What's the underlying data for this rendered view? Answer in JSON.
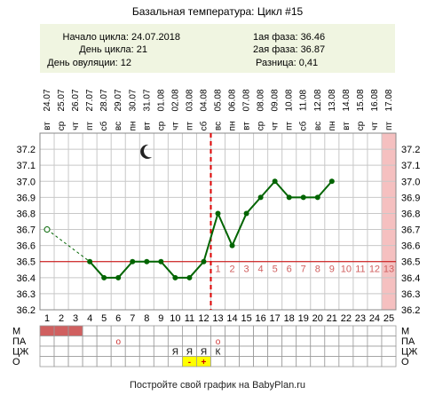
{
  "chart_data": {
    "type": "line",
    "title": "Базальная температура: Цикл #15",
    "info_left": [
      "Начало цикла: 24.07.2018",
      "День цикла: 21",
      "День овуляции: 12"
    ],
    "info_right": [
      "1ая фаза: 36.46",
      "2ая фаза: 36.87",
      "Разница: 0,41"
    ],
    "days": [
      1,
      2,
      3,
      4,
      5,
      6,
      7,
      8,
      9,
      10,
      11,
      12,
      13,
      14,
      15,
      16,
      17,
      18,
      19,
      20,
      21,
      22,
      23,
      24,
      25
    ],
    "weekdays": [
      "вт",
      "ср",
      "чт",
      "пт",
      "сб",
      "вс",
      "пн",
      "вт",
      "ср",
      "чт",
      "пт",
      "сб",
      "вс",
      "пн",
      "вт",
      "ср",
      "чт",
      "пт",
      "сб",
      "вс",
      "пн",
      "вт",
      "ср",
      "чт",
      "пт"
    ],
    "dates": [
      "24.07",
      "25.07",
      "26.07",
      "27.07",
      "28.07",
      "29.07",
      "30.07",
      "31.07",
      "01.08",
      "02.08",
      "03.08",
      "04.08",
      "05.08",
      "06.08",
      "07.08",
      "08.08",
      "09.08",
      "10.08",
      "11.08",
      "12.08",
      "13.08",
      "14.08",
      "15.08",
      "16.08",
      "17.08"
    ],
    "temperatures": [
      36.7,
      null,
      null,
      36.5,
      36.4,
      36.4,
      36.5,
      36.5,
      36.5,
      36.4,
      36.4,
      36.5,
      36.8,
      36.6,
      36.8,
      36.9,
      37.0,
      36.9,
      36.9,
      36.9,
      37.0,
      null,
      null,
      null,
      null
    ],
    "excluded_day": 1,
    "ylim": [
      36.2,
      37.3
    ],
    "yticks": [
      "36.2",
      "36.3",
      "36.4",
      "36.5",
      "36.6",
      "36.7",
      "36.8",
      "36.9",
      "37.0",
      "37.1",
      "37.2"
    ],
    "cover_line": 36.5,
    "ovulation_day": 12,
    "luteal_numbers": [
      "1",
      "2",
      "3",
      "4",
      "5",
      "6",
      "7",
      "8",
      "9",
      "10",
      "11",
      "12",
      "13"
    ],
    "moon_day": 8,
    "highlight_day": 25,
    "rows": [
      {
        "label": "М",
        "cells": {
          "1": "menses",
          "2": "menses",
          "3": "menses"
        }
      },
      {
        "label": "ПА",
        "cells": {
          "6": "о",
          "13": "о"
        }
      },
      {
        "label": "ЦЖ",
        "cells": {
          "10": "Я",
          "11": "Я",
          "12": "Я",
          "13": "К"
        }
      },
      {
        "label": "О",
        "cells": {
          "11": "-",
          "12": "+"
        }
      }
    ],
    "footer": "Постройте свой график на BabyPlan.ru",
    "colors": {
      "background": "#ffffff",
      "info_box": "#f0f5e1",
      "grid": "#c8c8c8",
      "line": "#006400",
      "cover_line": "#cc0000",
      "ovulation_line": "#dd0000",
      "menses": "#d06060",
      "highlight": "#f5c0c0",
      "test_box": "#ffff00",
      "luteal_text": "#d06060",
      "text": "#000000"
    }
  }
}
